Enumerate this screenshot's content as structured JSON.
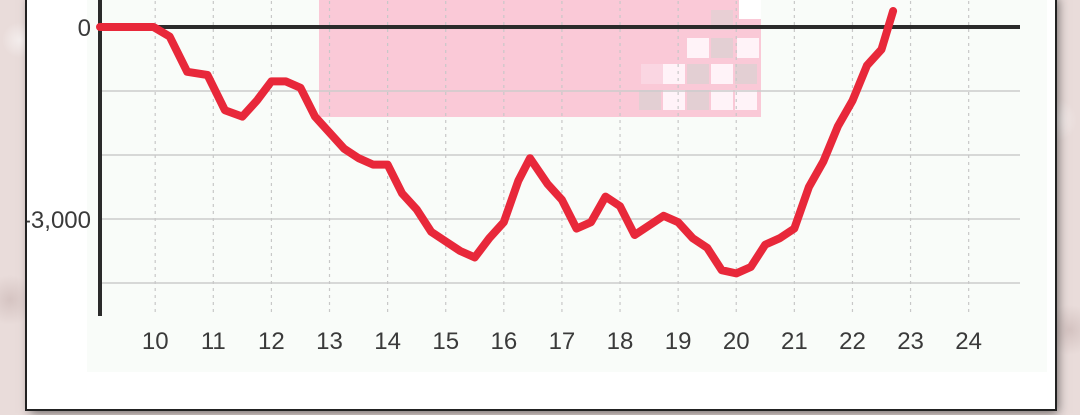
{
  "chart_data": {
    "type": "line",
    "title": "",
    "xlabel": "",
    "ylabel": "",
    "xlim": [
      9.05,
      24.35
    ],
    "ylim": [
      -4500,
      400
    ],
    "x_ticks": [
      10,
      11,
      12,
      13,
      14,
      15,
      16,
      17,
      18,
      19,
      20,
      21,
      22,
      23,
      24
    ],
    "x_tick_labels": [
      "10",
      "11",
      "12",
      "13",
      "14",
      "15",
      "16",
      "17",
      "18",
      "19",
      "20",
      "21",
      "22",
      "23",
      "24"
    ],
    "y_ticks": [
      0,
      -3000
    ],
    "y_tick_labels": [
      "0",
      "-3,000"
    ],
    "grid": true,
    "line_color": "#e8283a",
    "series": [
      {
        "name": "",
        "x": [
          9.05,
          9.97,
          10.25,
          10.55,
          10.9,
          11.2,
          11.5,
          11.75,
          12.0,
          12.25,
          12.5,
          12.75,
          13.0,
          13.25,
          13.5,
          13.75,
          14.0,
          14.25,
          14.5,
          14.75,
          15.0,
          15.25,
          15.5,
          15.75,
          16.0,
          16.25,
          16.45,
          16.75,
          17.0,
          17.25,
          17.5,
          17.75,
          18.0,
          18.25,
          18.5,
          18.75,
          19.0,
          19.25,
          19.5,
          19.75,
          20.0,
          20.25,
          20.5,
          20.75,
          21.0,
          21.25,
          21.5,
          21.75,
          22.0,
          22.25,
          22.5,
          22.7
        ],
        "y": [
          0,
          0,
          -150,
          -700,
          -750,
          -1300,
          -1400,
          -1150,
          -850,
          -850,
          -950,
          -1400,
          -1650,
          -1900,
          -2050,
          -2150,
          -2150,
          -2600,
          -2850,
          -3200,
          -3350,
          -3500,
          -3600,
          -3300,
          -3050,
          -2400,
          -2050,
          -2450,
          -2700,
          -3150,
          -3050,
          -2650,
          -2800,
          -3250,
          -3100,
          -2950,
          -3050,
          -3300,
          -3450,
          -3800,
          -3850,
          -3750,
          -3400,
          -3300,
          -3150,
          -2500,
          -2100,
          -1550,
          -1150,
          -600,
          -350,
          250
        ]
      }
    ]
  }
}
